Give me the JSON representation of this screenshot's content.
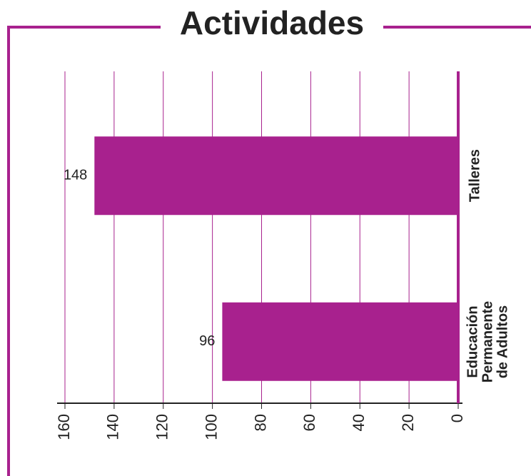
{
  "chart_data": {
    "type": "bar",
    "orientation": "horizontal-reversed",
    "title": "Actividades",
    "categories": [
      "Talleres",
      "Educación Permanente de Adultos"
    ],
    "values": [
      148,
      96
    ],
    "color": "#a8218e",
    "xlim": [
      0,
      160
    ],
    "xticks": [
      0,
      20,
      40,
      60,
      80,
      100,
      120,
      140,
      160
    ],
    "grid": true
  }
}
